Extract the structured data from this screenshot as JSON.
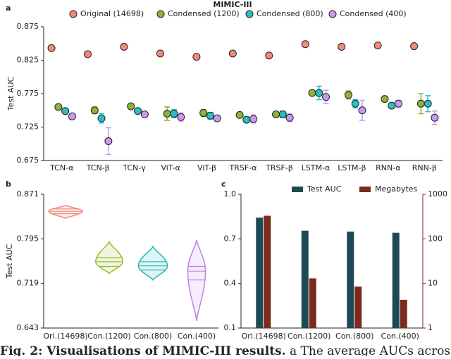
{
  "chart_data": [
    {
      "type": "errorbar",
      "label": "a",
      "title": "MIMIC-III",
      "y_label": "Test AUC",
      "categories": [
        "TCN-α",
        "TCN-β",
        "TCN-γ",
        "ViT-α",
        "ViT-β",
        "TRSF-α",
        "TRSF-β",
        "LSTM-α",
        "LSTM-β",
        "RNN-α",
        "RNN-β"
      ],
      "series": [
        {
          "name": "Original (14698)",
          "color": "#f4897a",
          "values": [
            0.843,
            0.834,
            0.845,
            0.835,
            0.83,
            0.835,
            0.832,
            0.849,
            0.845,
            0.847,
            0.846
          ],
          "errors": [
            0.002,
            0.002,
            0.002,
            0.002,
            0.002,
            0.002,
            0.002,
            0.002,
            0.002,
            0.002,
            0.002
          ]
        },
        {
          "name": "Condensed (1200)",
          "color": "#8db33a",
          "values": [
            0.755,
            0.75,
            0.756,
            0.745,
            0.746,
            0.743,
            0.744,
            0.776,
            0.773,
            0.767,
            0.76
          ],
          "errors": [
            0.003,
            0.005,
            0.002,
            0.01,
            0.005,
            0.004,
            0.004,
            0.003,
            0.006,
            0.004,
            0.015
          ]
        },
        {
          "name": "Condensed (800)",
          "color": "#2bbfc0",
          "values": [
            0.749,
            0.738,
            0.749,
            0.745,
            0.742,
            0.736,
            0.744,
            0.776,
            0.76,
            0.757,
            0.76
          ],
          "errors": [
            0.003,
            0.007,
            0.003,
            0.006,
            0.005,
            0.004,
            0.005,
            0.01,
            0.006,
            0.004,
            0.012
          ]
        },
        {
          "name": "Condensed (400)",
          "color": "#c99af0",
          "values": [
            0.741,
            0.704,
            0.744,
            0.74,
            0.738,
            0.737,
            0.739,
            0.77,
            0.75,
            0.76,
            0.739
          ],
          "errors": [
            0.004,
            0.02,
            0.003,
            0.006,
            0.004,
            0.006,
            0.006,
            0.01,
            0.015,
            0.005,
            0.01
          ]
        }
      ],
      "ylim": [
        0.675,
        0.875
      ],
      "yticks": [
        0.675,
        0.725,
        0.775,
        0.825,
        0.875
      ]
    },
    {
      "type": "violin",
      "label": "b",
      "y_label": "Test AUC",
      "categories": [
        "Ori.(14698)",
        "Con.(1200)",
        "Con.(800)",
        "Con.(400)"
      ],
      "colors": [
        "#f08878",
        "#9bbb2c",
        "#26b7b6",
        "#c080e8"
      ],
      "min": [
        0.83,
        0.736,
        0.725,
        0.655
      ],
      "q1": [
        0.838,
        0.748,
        0.742,
        0.725
      ],
      "median": [
        0.842,
        0.756,
        0.749,
        0.74
      ],
      "q3": [
        0.846,
        0.763,
        0.756,
        0.748
      ],
      "max": [
        0.852,
        0.79,
        0.782,
        0.793
      ],
      "ylim": [
        0.643,
        0.871
      ],
      "yticks": [
        0.643,
        0.719,
        0.795,
        0.871
      ]
    },
    {
      "type": "bar",
      "label": "c",
      "categories": [
        "Ori.(14698)",
        "Con.(1200)",
        "Con.(800)",
        "Con.(400)"
      ],
      "series": [
        {
          "name": "Test AUC",
          "color": "#1e4a55",
          "values": [
            0.843,
            0.755,
            0.749,
            0.741
          ]
        },
        {
          "name": "Megabytes",
          "color": "#7b2a1e",
          "values": [
            330,
            13,
            8.5,
            4.3
          ],
          "axis": "y2"
        }
      ],
      "ylim": [
        0.1,
        1.0
      ],
      "yticks": [
        {
          "value": 0.1,
          "label": "0.1"
        },
        0.4,
        0.7,
        {
          "value": 1,
          "label": "1.0"
        }
      ],
      "y2lim": [
        1,
        1000
      ],
      "y2ticks": [
        1,
        10,
        100,
        1000
      ],
      "y2log": true
    }
  ],
  "caption_title": "Fig. 2: Visualisations of MIMIC-III results.",
  "caption_text": " a The average AUCs across"
}
